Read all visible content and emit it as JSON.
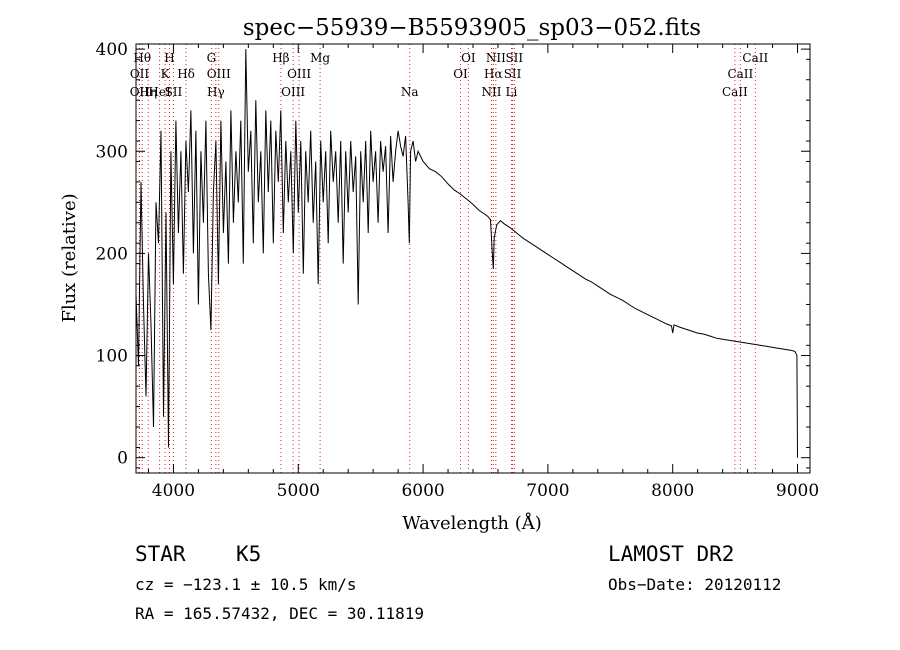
{
  "chart_data": {
    "type": "line",
    "title": "spec−55939−B5593905_sp03−052.fits",
    "xlabel": "Wavelength (Å)",
    "ylabel": "Flux (relative)",
    "xlim": [
      3700,
      9100
    ],
    "ylim": [
      -15,
      405
    ],
    "xticks": [
      4000,
      5000,
      6000,
      7000,
      8000,
      9000
    ],
    "yticks": [
      0,
      100,
      200,
      300,
      400
    ],
    "series": [
      {
        "style": "solid",
        "color": "#000000",
        "x": [
          3700,
          3720,
          3740,
          3760,
          3780,
          3800,
          3820,
          3840,
          3860,
          3880,
          3900,
          3920,
          3940,
          3960,
          3980,
          4000,
          4020,
          4040,
          4060,
          4080,
          4100,
          4120,
          4140,
          4160,
          4180,
          4200,
          4220,
          4240,
          4260,
          4280,
          4300,
          4320,
          4340,
          4360,
          4380,
          4400,
          4420,
          4440,
          4460,
          4480,
          4500,
          4520,
          4540,
          4560,
          4580,
          4600,
          4620,
          4640,
          4660,
          4680,
          4700,
          4720,
          4740,
          4760,
          4780,
          4800,
          4820,
          4840,
          4860,
          4880,
          4900,
          4920,
          4940,
          4960,
          4980,
          5000,
          5020,
          5040,
          5060,
          5080,
          5100,
          5120,
          5140,
          5160,
          5180,
          5200,
          5220,
          5240,
          5260,
          5280,
          5300,
          5320,
          5340,
          5360,
          5380,
          5400,
          5420,
          5440,
          5460,
          5480,
          5500,
          5520,
          5540,
          5560,
          5580,
          5600,
          5620,
          5640,
          5660,
          5680,
          5700,
          5720,
          5740,
          5760,
          5780,
          5800,
          5820,
          5840,
          5860,
          5880,
          5890,
          5900,
          5920,
          5940,
          5960,
          5980,
          6000,
          6050,
          6100,
          6150,
          6200,
          6250,
          6300,
          6350,
          6400,
          6450,
          6500,
          6520,
          6540,
          6555,
          6563,
          6570,
          6590,
          6620,
          6650,
          6700,
          6750,
          6800,
          6850,
          6900,
          6950,
          7000,
          7050,
          7100,
          7150,
          7200,
          7250,
          7300,
          7350,
          7400,
          7450,
          7500,
          7550,
          7600,
          7650,
          7700,
          7750,
          7800,
          7850,
          7900,
          7950,
          7990,
          8000,
          8010,
          8050,
          8100,
          8150,
          8200,
          8250,
          8300,
          8350,
          8400,
          8450,
          8500,
          8550,
          8600,
          8650,
          8700,
          8750,
          8800,
          8850,
          8900,
          8950,
          8980,
          8995,
          9000
        ],
        "y": [
          160,
          90,
          270,
          150,
          60,
          200,
          130,
          30,
          250,
          210,
          320,
          40,
          240,
          10,
          300,
          170,
          330,
          220,
          300,
          180,
          310,
          260,
          340,
          200,
          320,
          150,
          300,
          230,
          330,
          180,
          125,
          260,
          310,
          170,
          330,
          220,
          290,
          190,
          340,
          230,
          300,
          250,
          330,
          190,
          400,
          280,
          320,
          210,
          350,
          250,
          300,
          200,
          340,
          260,
          330,
          210,
          320,
          270,
          340,
          220,
          310,
          250,
          300,
          200,
          330,
          240,
          310,
          180,
          300,
          250,
          320,
          230,
          290,
          170,
          310,
          250,
          300,
          210,
          320,
          270,
          300,
          230,
          310,
          190,
          300,
          240,
          310,
          260,
          295,
          150,
          300,
          250,
          310,
          220,
          320,
          270,
          300,
          230,
          310,
          280,
          305,
          220,
          315,
          270,
          300,
          320,
          305,
          295,
          315,
          250,
          210,
          300,
          310,
          290,
          300,
          295,
          290,
          283,
          280,
          275,
          268,
          262,
          258,
          253,
          248,
          242,
          238,
          236,
          233,
          200,
          185,
          215,
          228,
          232,
          229,
          225,
          220,
          215,
          211,
          207,
          203,
          199,
          195,
          191,
          187,
          183,
          179,
          175,
          172,
          168,
          164,
          160,
          157,
          154,
          150,
          146,
          143,
          140,
          137,
          134,
          131,
          129,
          122,
          130,
          128,
          126,
          124,
          122,
          121,
          119,
          117,
          116,
          115,
          114,
          113,
          112,
          111,
          110,
          109,
          108,
          107,
          106,
          105,
          104,
          100,
          0
        ]
      }
    ],
    "line_markers": [
      {
        "x": 3750,
        "row": 0,
        "label": "Hθ"
      },
      {
        "x": 3728,
        "row": 1,
        "label": "OII"
      },
      {
        "x": 3727,
        "row": 2,
        "label": "OII"
      },
      {
        "x": 3798,
        "row": 2,
        "label": "Hη"
      },
      {
        "x": 3889,
        "row": 2,
        "label": "HeI"
      },
      {
        "x": 3933,
        "row": 1,
        "label": "K"
      },
      {
        "x": 3968,
        "row": 0,
        "label": "H"
      },
      {
        "x": 4000,
        "row": 2,
        "label": "SII"
      },
      {
        "x": 4101,
        "row": 1,
        "label": "Hδ"
      },
      {
        "x": 4304,
        "row": 0,
        "label": "G"
      },
      {
        "x": 4340,
        "row": 2,
        "label": "Hγ"
      },
      {
        "x": 4363,
        "row": 1,
        "label": "OIII"
      },
      {
        "x": 4861,
        "row": 0,
        "label": "Hβ"
      },
      {
        "x": 4959,
        "row": 2,
        "label": "OIII"
      },
      {
        "x": 5007,
        "row": 1,
        "label": "OIII"
      },
      {
        "x": 5175,
        "row": 0,
        "label": "Mg"
      },
      {
        "x": 5893,
        "row": 2,
        "label": "Na"
      },
      {
        "x": 6300,
        "row": 1,
        "label": "OI"
      },
      {
        "x": 6363,
        "row": 0,
        "label": "OI"
      },
      {
        "x": 6548,
        "row": 2,
        "label": "NII"
      },
      {
        "x": 6563,
        "row": 1,
        "label": "Hα"
      },
      {
        "x": 6583,
        "row": 0,
        "label": "NII"
      },
      {
        "x": 6708,
        "row": 2,
        "label": "Li"
      },
      {
        "x": 6717,
        "row": 1,
        "label": "SII"
      },
      {
        "x": 6731,
        "row": 0,
        "label": "SII"
      },
      {
        "x": 8498,
        "row": 2,
        "label": "CaII"
      },
      {
        "x": 8542,
        "row": 1,
        "label": "CaII"
      },
      {
        "x": 8662,
        "row": 0,
        "label": "CaII"
      }
    ],
    "marker_color": "#e02020",
    "annotations": {
      "class": "STAR",
      "subclass": "K5",
      "cz": "cz = −123.1 ± 10.5 km/s",
      "coords": "RA = 165.57432, DEC =  30.11819",
      "survey": "LAMOST DR2",
      "obs_date": "Obs−Date: 20120112"
    }
  }
}
